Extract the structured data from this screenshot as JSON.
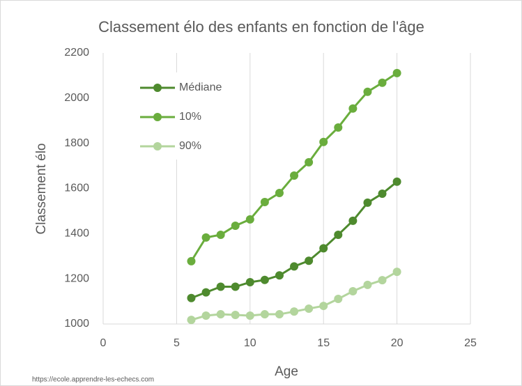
{
  "chart_data": {
    "type": "line",
    "title": "Classement élo des enfants en fonction de l'âge",
    "x_label": "Age",
    "y_label": "Classement élo",
    "source": "https://ecole.apprendre-les-echecs.com",
    "x": [
      6,
      7,
      8,
      9,
      10,
      11,
      12,
      13,
      14,
      15,
      16,
      17,
      18,
      19,
      20
    ],
    "series": [
      {
        "name": "Médiane",
        "color": "#4e8a2e",
        "values": [
          1115,
          1140,
          1165,
          1165,
          1185,
          1195,
          1215,
          1255,
          1280,
          1335,
          1395,
          1457,
          1537,
          1577,
          1630
        ]
      },
      {
        "name": "10%",
        "color": "#6aad3d",
        "values": [
          1278,
          1383,
          1395,
          1435,
          1463,
          1540,
          1580,
          1657,
          1716,
          1806,
          1870,
          1954,
          2028,
          2068,
          2111
        ]
      },
      {
        "name": "90%",
        "color": "#b3d59d",
        "values": [
          1018,
          1037,
          1043,
          1040,
          1037,
          1043,
          1043,
          1055,
          1068,
          1080,
          1111,
          1145,
          1173,
          1194,
          1231
        ]
      }
    ],
    "xlim": [
      0,
      25
    ],
    "xticks": [
      0,
      5,
      10,
      15,
      20,
      25
    ],
    "ylim": [
      1000,
      2200
    ],
    "yticks": [
      1000,
      1200,
      1400,
      1600,
      1800,
      2000,
      2200
    ],
    "grid": "x",
    "legend": "upper left"
  }
}
